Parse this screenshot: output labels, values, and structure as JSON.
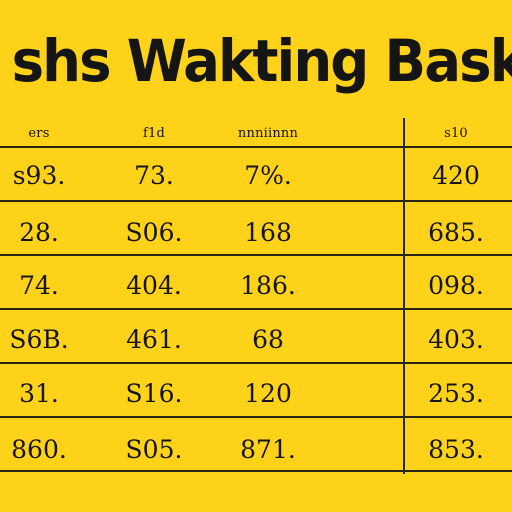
{
  "document": {
    "title": "shs Wakting Baskisiher",
    "headers": [
      "ers",
      "f1d",
      "nnniinnn",
      "s10"
    ],
    "rows": [
      [
        "s93.",
        "73.",
        "7%.",
        "420"
      ],
      [
        "28.",
        "S06.",
        "168",
        "685."
      ],
      [
        "74.",
        "404.",
        "186.",
        "098."
      ],
      [
        "S6B.",
        "461.",
        "68",
        "403."
      ],
      [
        "31.",
        "S16.",
        "120",
        "253."
      ],
      [
        "860.",
        "S05.",
        "871.",
        "853."
      ]
    ]
  }
}
